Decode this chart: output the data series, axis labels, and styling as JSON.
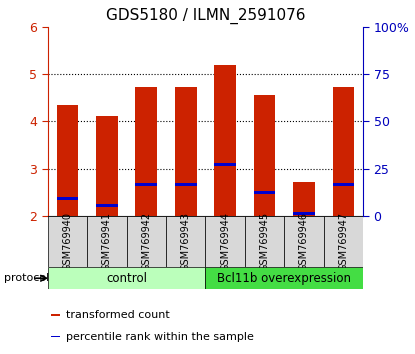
{
  "title": "GDS5180 / ILMN_2591076",
  "samples": [
    "GSM769940",
    "GSM769941",
    "GSM769942",
    "GSM769943",
    "GSM769944",
    "GSM769945",
    "GSM769946",
    "GSM769947"
  ],
  "bar_heights": [
    4.35,
    4.12,
    4.72,
    4.72,
    5.18,
    4.55,
    2.72,
    4.72
  ],
  "bar_base": 2.0,
  "percentile_values": [
    2.37,
    2.22,
    2.67,
    2.67,
    3.08,
    2.5,
    2.05,
    2.67
  ],
  "ylim": [
    2.0,
    6.0
  ],
  "yticks_left": [
    2,
    3,
    4,
    5,
    6
  ],
  "yticks_right": [
    0,
    25,
    50,
    75,
    100
  ],
  "bar_color": "#cc2200",
  "percentile_color": "#0000cc",
  "bar_width": 0.55,
  "groups": [
    {
      "label": "control",
      "start": 0,
      "end": 4,
      "color": "#bbffbb"
    },
    {
      "label": "Bcl11b overexpression",
      "start": 4,
      "end": 8,
      "color": "#44dd44"
    }
  ],
  "protocol_label": "protocol",
  "legend_items": [
    {
      "color": "#cc2200",
      "label": "transformed count"
    },
    {
      "color": "#0000cc",
      "label": "percentile rank within the sample"
    }
  ],
  "tick_label_color_left": "#cc2200",
  "tick_label_color_right": "#0000bb",
  "title_fontsize": 11,
  "legend_fontsize": 8,
  "sample_fontsize": 7,
  "group_fontsize": 8.5
}
